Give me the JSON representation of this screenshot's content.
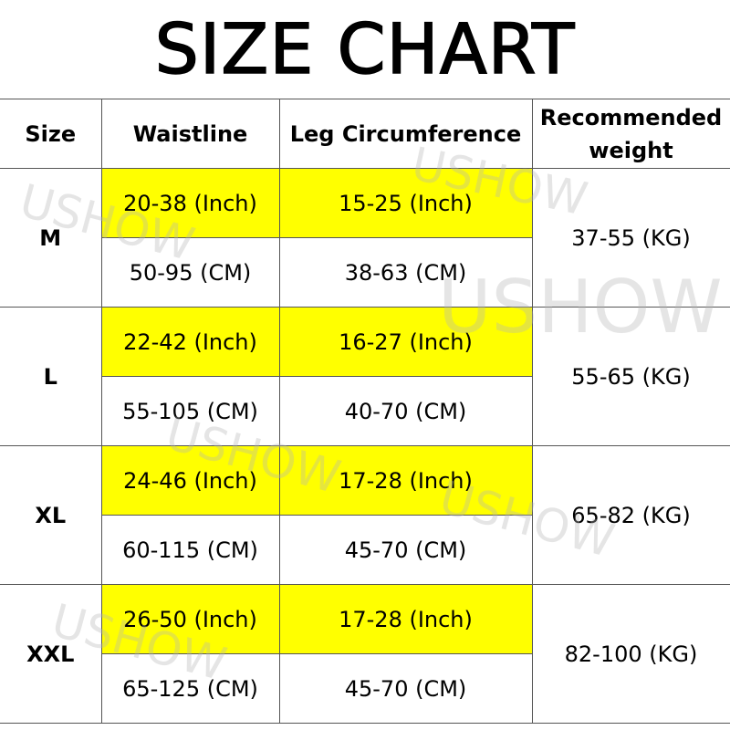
{
  "title": "SIZE CHART",
  "watermark": "USHOW",
  "colors": {
    "highlight": "#ffff00",
    "border": "#555555"
  },
  "headers": [
    "Size",
    "Waistline",
    "Leg Circumference",
    "Recommended weight"
  ],
  "rows": [
    {
      "size": "M",
      "waist_inch": "20-38 (Inch)",
      "leg_inch": "15-25 (Inch)",
      "waist_cm": "50-95 (CM)",
      "leg_cm": "38-63 (CM)",
      "weight": "37-55 (KG)"
    },
    {
      "size": "L",
      "waist_inch": "22-42 (Inch)",
      "leg_inch": "16-27 (Inch)",
      "waist_cm": "55-105 (CM)",
      "leg_cm": "40-70 (CM)",
      "weight": "55-65 (KG)"
    },
    {
      "size": "XL",
      "waist_inch": "24-46 (Inch)",
      "leg_inch": "17-28 (Inch)",
      "waist_cm": "60-115 (CM)",
      "leg_cm": "45-70 (CM)",
      "weight": "65-82 (KG)"
    },
    {
      "size": "XXL",
      "waist_inch": "26-50 (Inch)",
      "leg_inch": "17-28 (Inch)",
      "waist_cm": "65-125 (CM)",
      "leg_cm": "45-70 (CM)",
      "weight": "82-100 (KG)"
    }
  ]
}
